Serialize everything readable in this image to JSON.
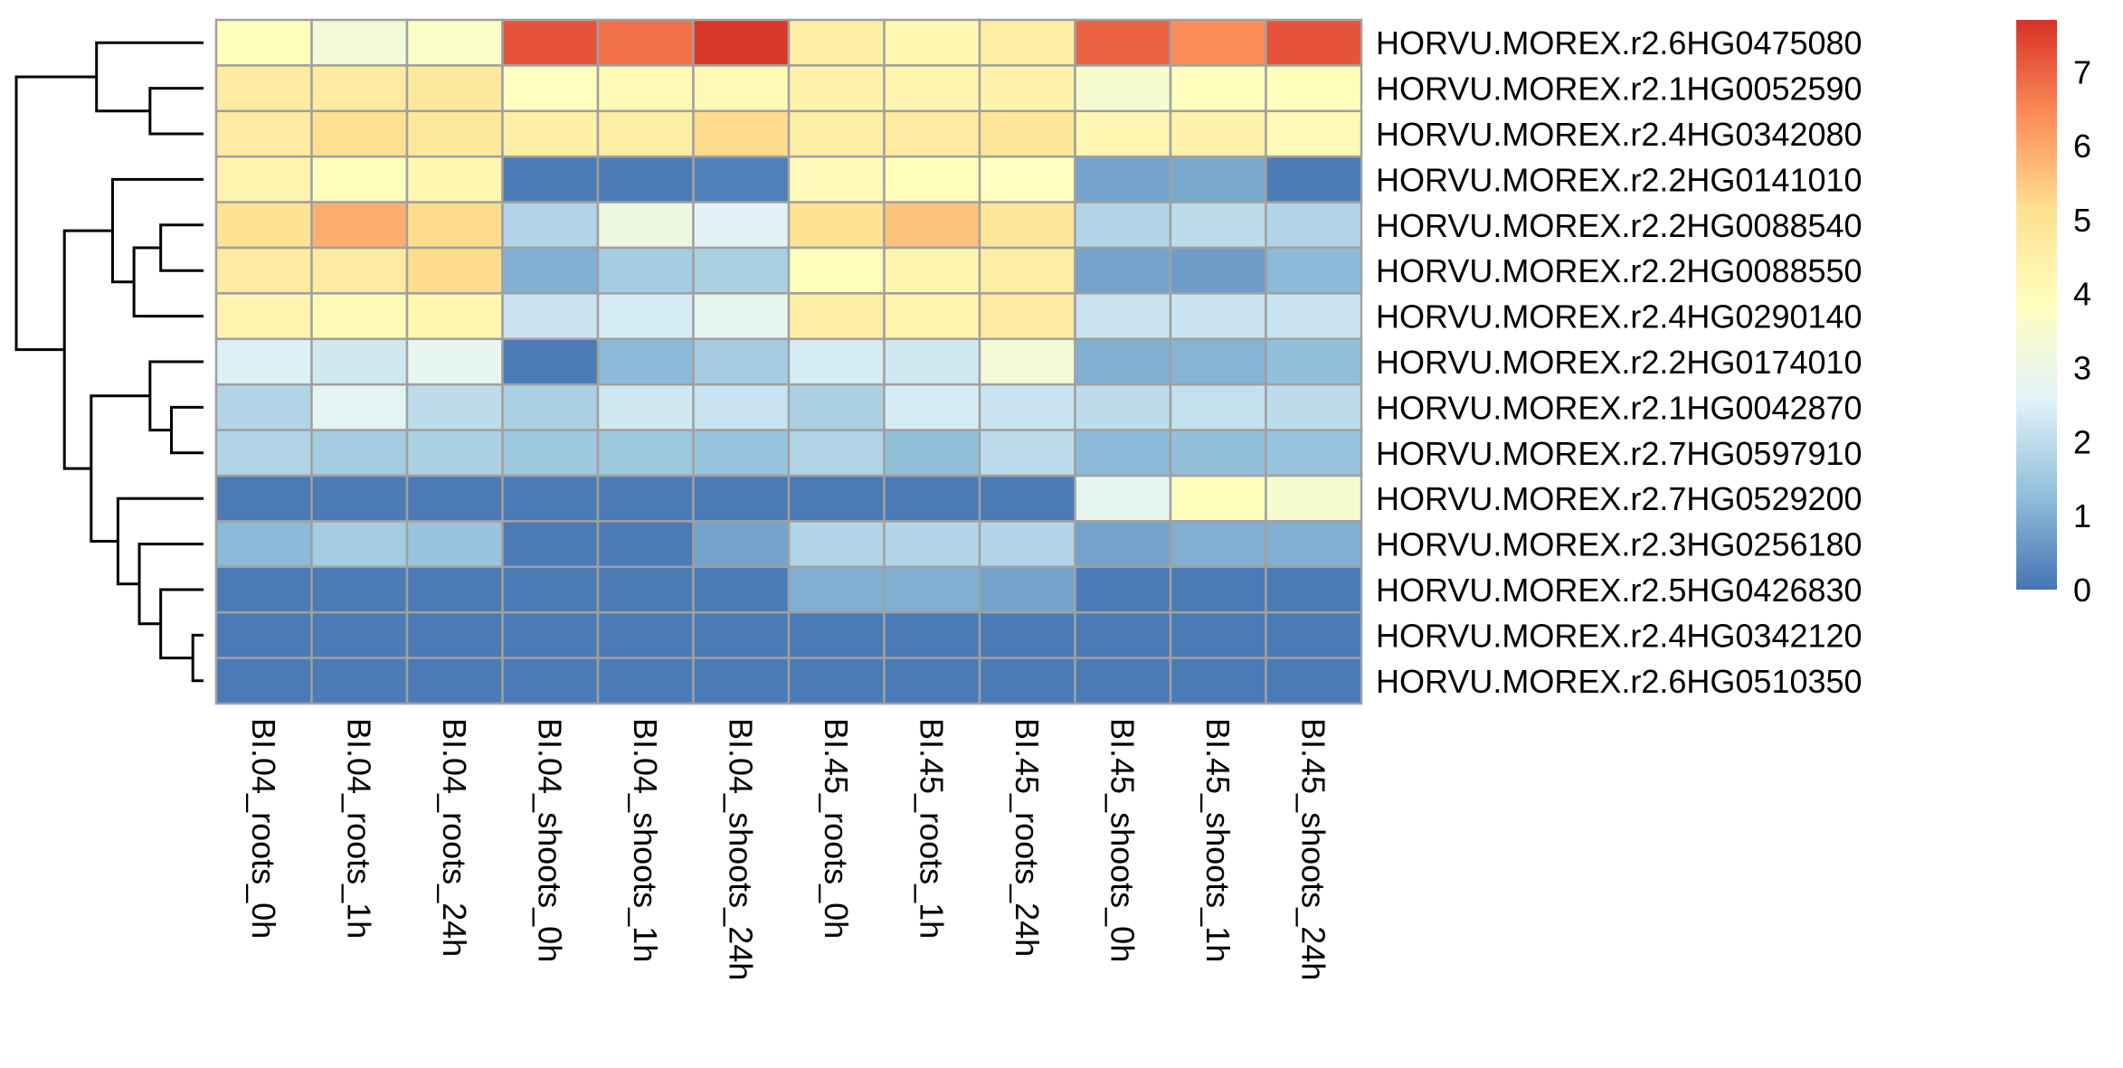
{
  "chart_data": {
    "type": "heatmap",
    "title": "",
    "xlabel": "",
    "ylabel": "",
    "columns": [
      "BI.04_roots_0h",
      "BI.04_roots_1h",
      "BI.04_roots_24h",
      "BI.04_shoots_0h",
      "BI.04_shoots_1h",
      "BI.04_shoots_24h",
      "BI.45_roots_0h",
      "BI.45_roots_1h",
      "BI.45_roots_24h",
      "BI.45_shoots_0h",
      "BI.45_shoots_1h",
      "BI.45_shoots_24h"
    ],
    "rows": [
      "HORVU.MOREX.r2.6HG0475080",
      "HORVU.MOREX.r2.1HG0052590",
      "HORVU.MOREX.r2.4HG0342080",
      "HORVU.MOREX.r2.2HG0141010",
      "HORVU.MOREX.r2.2HG0088540",
      "HORVU.MOREX.r2.2HG0088550",
      "HORVU.MOREX.r2.4HG0290140",
      "HORVU.MOREX.r2.2HG0174010",
      "HORVU.MOREX.r2.1HG0042870",
      "HORVU.MOREX.r2.7HG0597910",
      "HORVU.MOREX.r2.7HG0529200",
      "HORVU.MOREX.r2.3HG0256180",
      "HORVU.MOREX.r2.5HG0426830",
      "HORVU.MOREX.r2.4HG0342120",
      "HORVU.MOREX.r2.6HG0510350"
    ],
    "values": [
      [
        3.9,
        3.3,
        3.7,
        7.2,
        6.8,
        7.6,
        4.6,
        4.2,
        4.6,
        7.0,
        6.4,
        7.2
      ],
      [
        4.7,
        4.7,
        4.8,
        3.8,
        4.1,
        4.1,
        4.4,
        4.3,
        4.4,
        3.5,
        3.9,
        3.9
      ],
      [
        4.7,
        5.1,
        4.8,
        4.5,
        4.6,
        5.2,
        4.6,
        4.7,
        4.9,
        4.2,
        4.4,
        4.1
      ],
      [
        4.3,
        3.9,
        4.2,
        0.1,
        0.1,
        0.2,
        4.0,
        3.9,
        3.8,
        0.8,
        0.9,
        0.1
      ],
      [
        5.0,
        5.9,
        5.2,
        1.8,
        3.1,
        2.6,
        5.1,
        5.6,
        4.9,
        1.8,
        2.0,
        1.8
      ],
      [
        4.7,
        4.7,
        5.2,
        1.0,
        1.6,
        1.7,
        3.9,
        4.3,
        4.6,
        0.8,
        0.7,
        1.2
      ],
      [
        4.3,
        4.1,
        4.2,
        2.2,
        2.4,
        2.8,
        4.5,
        4.3,
        4.7,
        2.2,
        2.2,
        2.2
      ],
      [
        2.5,
        2.3,
        2.8,
        0.1,
        1.2,
        1.6,
        2.4,
        2.3,
        3.3,
        1.0,
        1.1,
        1.3
      ],
      [
        1.8,
        2.7,
        2.0,
        1.7,
        2.3,
        2.2,
        1.7,
        2.4,
        2.2,
        2.0,
        2.1,
        2.0
      ],
      [
        1.8,
        1.6,
        1.7,
        1.5,
        1.5,
        1.4,
        1.8,
        1.3,
        2.0,
        1.2,
        1.3,
        1.4
      ],
      [
        0.1,
        0.1,
        0.1,
        0.1,
        0.1,
        0.1,
        0.1,
        0.1,
        0.1,
        2.8,
        3.9,
        3.5
      ],
      [
        1.2,
        1.6,
        1.4,
        0.1,
        0.1,
        0.8,
        1.8,
        1.8,
        1.8,
        0.8,
        1.0,
        1.0
      ],
      [
        0.1,
        0.1,
        0.1,
        0.1,
        0.1,
        0.1,
        1.0,
        1.0,
        0.8,
        0.1,
        0.1,
        0.1
      ],
      [
        0.1,
        0.1,
        0.1,
        0.1,
        0.1,
        0.1,
        0.1,
        0.1,
        0.1,
        0.1,
        0.1,
        0.1
      ],
      [
        0.1,
        0.1,
        0.1,
        0.1,
        0.1,
        0.1,
        0.1,
        0.1,
        0.1,
        0.1,
        0.1,
        0.1
      ]
    ],
    "color_scale": {
      "min": 0,
      "max": 7.7,
      "stops": [
        "#4575B4",
        "#91BFDB",
        "#E0F3F8",
        "#FFFFBF",
        "#FEE090",
        "#FC8D59",
        "#D73027"
      ],
      "ticks": [
        "0",
        "1",
        "2",
        "3",
        "4",
        "5",
        "6",
        "7"
      ]
    },
    "legend_position": "right",
    "cell_border_color": "#A0A0A0",
    "row_dendrogram": {
      "type": "row-clustering",
      "leaf_order": [
        0,
        1,
        2,
        3,
        4,
        5,
        6,
        7,
        8,
        9,
        10,
        11,
        12,
        13,
        14
      ],
      "merges": [
        [
          1,
          2,
          1.0
        ],
        [
          0,
          "m0",
          2.0
        ],
        [
          4,
          5,
          0.8
        ],
        [
          "m2",
          6,
          1.3
        ],
        [
          3,
          "m3",
          1.7
        ],
        [
          8,
          9,
          0.6
        ],
        [
          7,
          "m5",
          1.0
        ],
        [
          13,
          14,
          0.2
        ],
        [
          12,
          "m7",
          0.8
        ],
        [
          11,
          "m8",
          1.2
        ],
        [
          10,
          "m9",
          1.6
        ],
        [
          "m6",
          "m10",
          2.1
        ],
        [
          "m4",
          "m11",
          2.6
        ],
        [
          "m1",
          "m12",
          3.5
        ]
      ]
    }
  }
}
